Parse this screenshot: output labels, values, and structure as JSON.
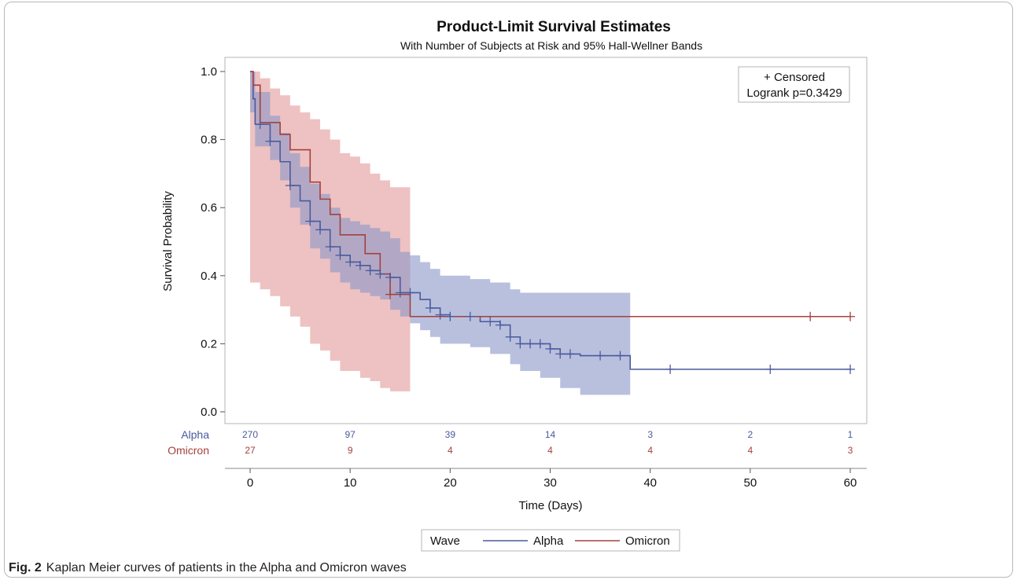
{
  "figure": {
    "label": "Fig. 2",
    "caption": "Kaplan Meier curves of patients in the Alpha and Omicron waves"
  },
  "chart_data": {
    "type": "line",
    "subtype": "step (Kaplan-Meier survival)",
    "title": "Product-Limit Survival Estimates",
    "subtitle": "With Number of Subjects at Risk and 95% Hall-Wellner Bands",
    "xlabel": "Time (Days)",
    "ylabel": "Survival Probability",
    "xlim": [
      0,
      60
    ],
    "ylim": [
      0,
      1
    ],
    "x_ticks": [
      0,
      10,
      20,
      30,
      40,
      50,
      60
    ],
    "y_ticks": [
      "0.0",
      "0.2",
      "0.4",
      "0.6",
      "0.8",
      "1.0"
    ],
    "grid": false,
    "inset_legend": {
      "position": "top-right",
      "lines": [
        "+ Censored",
        "Logrank p=0.3429"
      ]
    },
    "legend": {
      "position": "bottom",
      "title": "Wave"
    },
    "series": [
      {
        "name": "Alpha",
        "color": "#4a5a9c",
        "band_color": "#8a96c8",
        "steps": [
          [
            0,
            1.0
          ],
          [
            0.3,
            0.92
          ],
          [
            0.5,
            0.845
          ],
          [
            2,
            0.795
          ],
          [
            3,
            0.735
          ],
          [
            4,
            0.665
          ],
          [
            5,
            0.62
          ],
          [
            6,
            0.56
          ],
          [
            7,
            0.535
          ],
          [
            8,
            0.485
          ],
          [
            9,
            0.46
          ],
          [
            10,
            0.44
          ],
          [
            11,
            0.43
          ],
          [
            12,
            0.415
          ],
          [
            13,
            0.405
          ],
          [
            14,
            0.395
          ],
          [
            15,
            0.35
          ],
          [
            17,
            0.33
          ],
          [
            18,
            0.305
          ],
          [
            19,
            0.285
          ],
          [
            20,
            0.28
          ],
          [
            23,
            0.265
          ],
          [
            25,
            0.255
          ],
          [
            26,
            0.22
          ],
          [
            27,
            0.2
          ],
          [
            30,
            0.185
          ],
          [
            31,
            0.17
          ],
          [
            33,
            0.165
          ],
          [
            38,
            0.125
          ],
          [
            60,
            0.125
          ]
        ],
        "band": [
          [
            0,
            0.88,
            1.0
          ],
          [
            0.5,
            0.78,
            0.94
          ],
          [
            2,
            0.74,
            0.87
          ],
          [
            3,
            0.68,
            0.82
          ],
          [
            4,
            0.6,
            0.76
          ],
          [
            5,
            0.55,
            0.72
          ],
          [
            6,
            0.48,
            0.67
          ],
          [
            7,
            0.45,
            0.64
          ],
          [
            8,
            0.41,
            0.6
          ],
          [
            9,
            0.38,
            0.57
          ],
          [
            10,
            0.36,
            0.56
          ],
          [
            11,
            0.35,
            0.55
          ],
          [
            12,
            0.34,
            0.54
          ],
          [
            13,
            0.33,
            0.53
          ],
          [
            14,
            0.3,
            0.51
          ],
          [
            15,
            0.28,
            0.47
          ],
          [
            16,
            0.26,
            0.46
          ],
          [
            17,
            0.24,
            0.44
          ],
          [
            18,
            0.22,
            0.42
          ],
          [
            19,
            0.2,
            0.4
          ],
          [
            22,
            0.19,
            0.39
          ],
          [
            24,
            0.17,
            0.38
          ],
          [
            26,
            0.14,
            0.36
          ],
          [
            27,
            0.12,
            0.35
          ],
          [
            29,
            0.1,
            0.35
          ],
          [
            31,
            0.07,
            0.35
          ],
          [
            33,
            0.05,
            0.35
          ],
          [
            38,
            0.05,
            0.35
          ]
        ],
        "censored": [
          1,
          2,
          4,
          6,
          7,
          8,
          9,
          10,
          11,
          12,
          13,
          14,
          15,
          16,
          18,
          19,
          20,
          22,
          24,
          25,
          26,
          27,
          28,
          29,
          30,
          31,
          32,
          35,
          37,
          42,
          52,
          60
        ],
        "at_risk": [
          "270",
          "97",
          "39",
          "14",
          "3",
          "2",
          "1"
        ]
      },
      {
        "name": "Omicron",
        "color": "#a4403d",
        "band_color": "#e39a9a",
        "steps": [
          [
            0,
            1.0
          ],
          [
            0.3,
            0.96
          ],
          [
            1,
            0.85
          ],
          [
            3,
            0.815
          ],
          [
            4,
            0.77
          ],
          [
            6,
            0.675
          ],
          [
            7,
            0.625
          ],
          [
            8,
            0.58
          ],
          [
            9,
            0.52
          ],
          [
            11,
            0.52
          ],
          [
            11.5,
            0.465
          ],
          [
            13,
            0.405
          ],
          [
            14,
            0.345
          ],
          [
            16,
            0.28
          ],
          [
            60,
            0.28
          ]
        ],
        "band": [
          [
            0,
            0.38,
            1.0
          ],
          [
            1,
            0.36,
            0.98
          ],
          [
            2,
            0.34,
            0.95
          ],
          [
            3,
            0.31,
            0.93
          ],
          [
            4,
            0.28,
            0.9
          ],
          [
            5,
            0.25,
            0.88
          ],
          [
            6,
            0.2,
            0.86
          ],
          [
            7,
            0.18,
            0.83
          ],
          [
            8,
            0.15,
            0.8
          ],
          [
            9,
            0.12,
            0.76
          ],
          [
            10,
            0.12,
            0.75
          ],
          [
            11,
            0.1,
            0.73
          ],
          [
            12,
            0.09,
            0.7
          ],
          [
            13,
            0.07,
            0.68
          ],
          [
            14,
            0.06,
            0.66
          ],
          [
            16,
            0.06,
            0.66
          ]
        ],
        "censored": [
          14,
          56,
          60
        ],
        "at_risk": [
          "27",
          "9",
          "4",
          "4",
          "4",
          "4",
          "3"
        ]
      }
    ]
  }
}
